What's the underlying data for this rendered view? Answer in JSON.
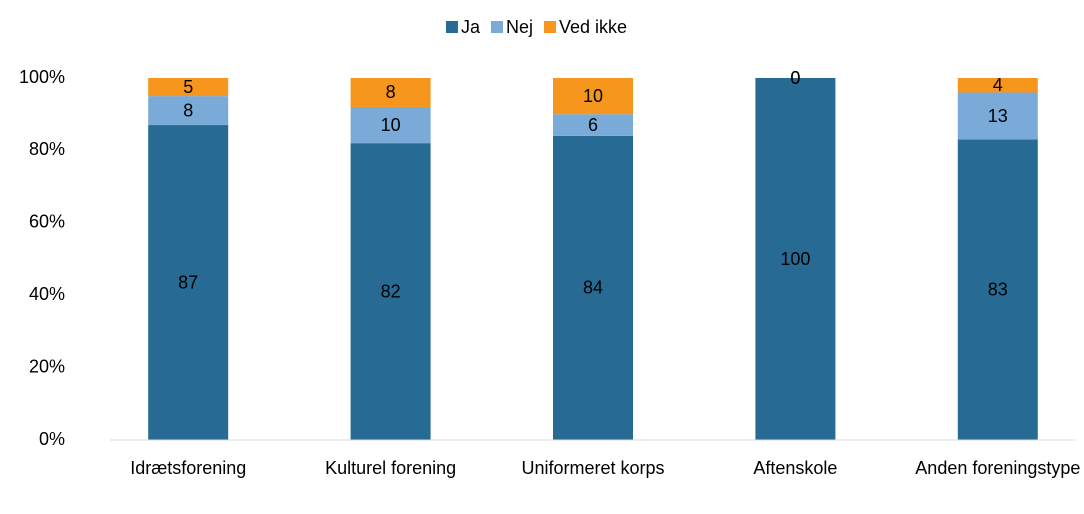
{
  "chart_data": {
    "type": "stacked_bar",
    "categories": [
      "Idrætsforening",
      "Kulturel forening",
      "Uniformeret korps",
      "Aftenskole",
      "Anden foreningstype"
    ],
    "series": [
      {
        "name": "Ja",
        "color": "#276a93",
        "values": [
          87,
          82,
          84,
          100,
          83
        ]
      },
      {
        "name": "Nej",
        "color": "#7aabd8",
        "values": [
          8,
          10,
          6,
          0,
          13
        ]
      },
      {
        "name": "Ved ikke",
        "color": "#f7961d",
        "values": [
          5,
          8,
          10,
          0,
          4
        ]
      }
    ],
    "ylim": [
      0,
      100
    ],
    "yticks": [
      {
        "value": 0,
        "label": "0%"
      },
      {
        "value": 20,
        "label": "20%"
      },
      {
        "value": 40,
        "label": "40%"
      },
      {
        "value": 60,
        "label": "60%"
      },
      {
        "value": 80,
        "label": "80%"
      },
      {
        "value": 100,
        "label": "100%"
      }
    ],
    "grid": false,
    "legend": "top"
  }
}
